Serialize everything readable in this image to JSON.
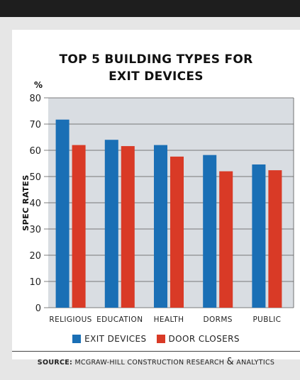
{
  "title_lines": [
    "TOP 5 BUILDING TYPES FOR",
    "EXIT DEVICES"
  ],
  "unit_label": "%",
  "colors": {
    "exit_devices": "#1a6fb5",
    "door_closers": "#d93a26",
    "plot_background": "#d9dde2",
    "grid": "#555555"
  },
  "legend": {
    "exit_devices": "EXIT DEVICES",
    "door_closers": "DOOR CLOSERS"
  },
  "source": {
    "label": "SOURCE:",
    "text_before": "MCGRAW-HILL CONSTRUCTION RESEARCH",
    "ampersand": "&",
    "text_after": "ANALYTICS"
  },
  "chart_data": {
    "type": "bar",
    "title": "TOP 5 BUILDING TYPES FOR EXIT DEVICES",
    "ylabel": "SPEC RATES",
    "xlabel": "",
    "categories": [
      "RELIGIOUS",
      "EDUCATION",
      "HEALTH",
      "DORMS",
      "PUBLIC"
    ],
    "series": [
      {
        "name": "EXIT DEVICES",
        "values": [
          71.7,
          64,
          62,
          58.2,
          54.6
        ]
      },
      {
        "name": "DOOR CLOSERS",
        "values": [
          62,
          61.6,
          57.6,
          52,
          52.4
        ]
      }
    ],
    "ylim": [
      0,
      80
    ],
    "yticks": [
      0,
      10,
      20,
      30,
      40,
      50,
      60,
      70,
      80
    ],
    "grid": true,
    "legend_position": "bottom"
  }
}
